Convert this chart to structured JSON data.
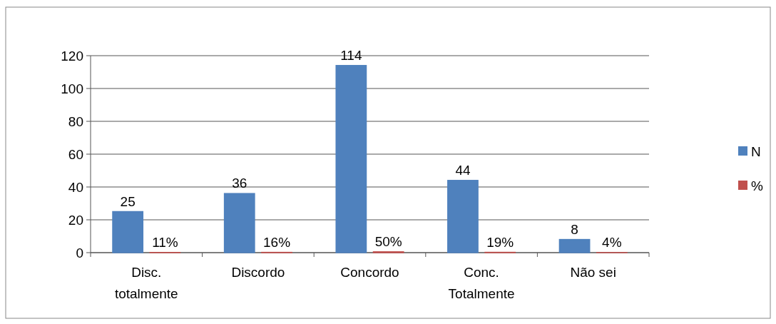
{
  "chart_data": {
    "type": "bar",
    "categories": [
      "Disc. totalmente",
      "Discordo",
      "Concordo",
      "Conc. Totalmente",
      "Não sei"
    ],
    "series": [
      {
        "name": "N",
        "color": "#4f81bd",
        "values": [
          25,
          36,
          114,
          44,
          8
        ],
        "value_labels": [
          "25",
          "36",
          "114",
          "44",
          "8"
        ]
      },
      {
        "name": "%",
        "color": "#c0504d",
        "values": [
          0.11,
          0.16,
          0.5,
          0.19,
          0.04
        ],
        "value_labels": [
          "11%",
          "16%",
          "50%",
          "19%",
          "4%"
        ]
      }
    ],
    "ylim": [
      0,
      120
    ],
    "yticks": [
      0,
      20,
      40,
      60,
      80,
      100,
      120
    ],
    "grid": "y",
    "legend": "right"
  }
}
